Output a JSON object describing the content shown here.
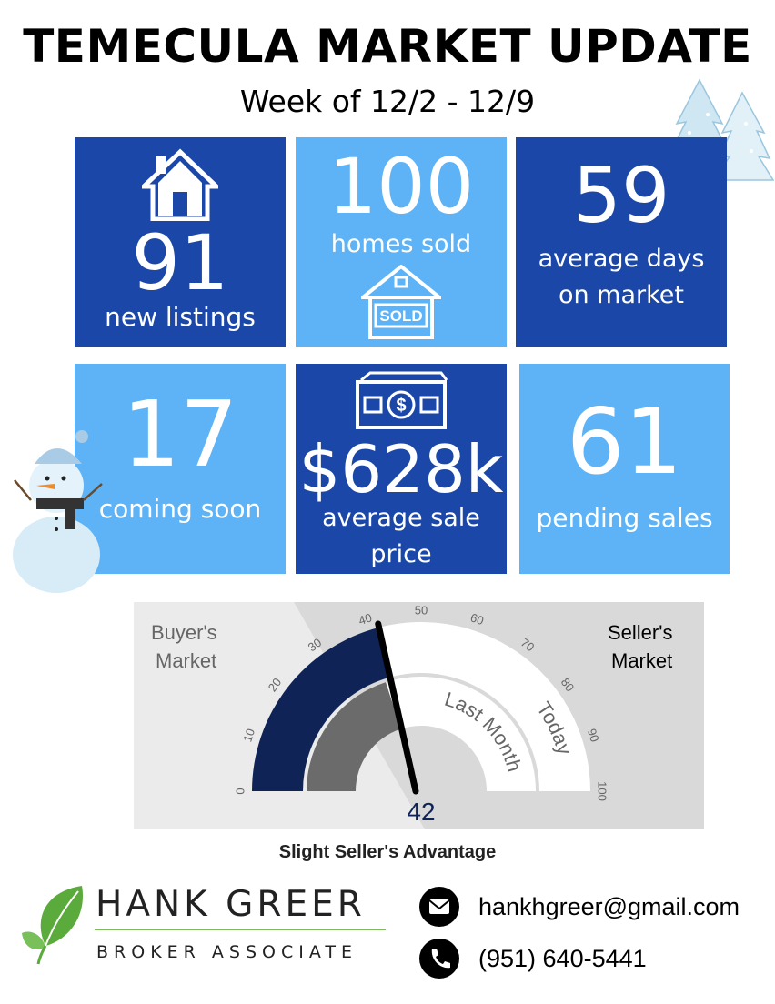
{
  "header": {
    "title": "TEMECULA MARKET UPDATE",
    "subtitle": "Week of 12/2 - 12/9"
  },
  "stats": {
    "new_listings": {
      "value": "91",
      "label": "new listings",
      "icon": "house-icon"
    },
    "homes_sold": {
      "value": "100",
      "label": "homes sold",
      "icon": "sold-sign-icon",
      "sign_text": "SOLD"
    },
    "days_on_market": {
      "value": "59",
      "label_line1": "average days",
      "label_line2": "on market"
    },
    "coming_soon": {
      "value": "17",
      "label": "coming soon"
    },
    "avg_sale_price": {
      "value": "$628k",
      "label_line1": "average sale",
      "label_line2": "price",
      "icon": "money-bill-icon"
    },
    "pending_sales": {
      "value": "61",
      "label": "pending sales"
    }
  },
  "gauge": {
    "left_label_line1": "Buyer's",
    "left_label_line2": "Market",
    "right_label_line1": "Seller's",
    "right_label_line2": "Market",
    "ticks": [
      "0",
      "10",
      "20",
      "30",
      "40",
      "50",
      "60",
      "70",
      "80",
      "90",
      "100"
    ],
    "ring_outer_label": "Today",
    "ring_inner_label": "Last Month",
    "today_value": 42,
    "last_month_value": 40,
    "value_display": "42"
  },
  "verdict": "Slight Seller's Advantage",
  "agent": {
    "name": "HANK GREER",
    "role": "BROKER ASSOCIATE",
    "email": "hankhgreer@gmail.com",
    "phone": "(951) 640-5441"
  },
  "colors": {
    "tile_dark": "#1b47a8",
    "tile_light": "#5eb3f6",
    "gauge_fill_outer": "#0f2356",
    "gauge_fill_inner": "#6b6b6b",
    "brand_green": "#7dbb5d"
  }
}
